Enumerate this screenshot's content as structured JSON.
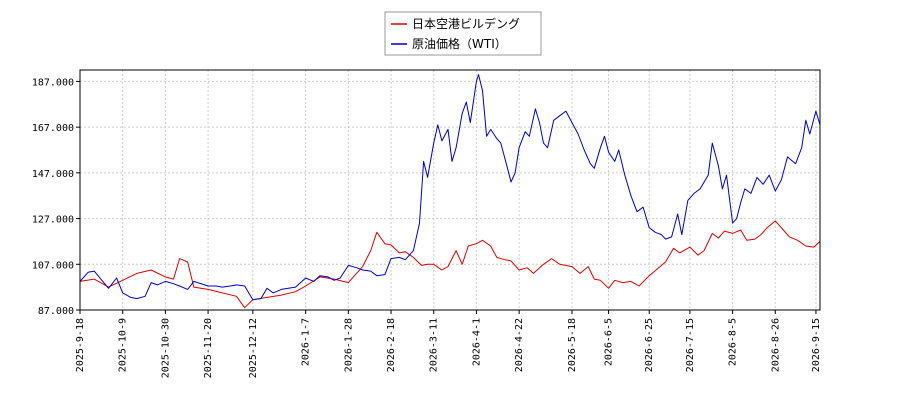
{
  "chart_data": {
    "type": "line",
    "title": "",
    "xlabel": "",
    "ylabel": "",
    "ylim": [
      87,
      192
    ],
    "yticks": [
      87,
      107,
      127,
      147,
      167,
      187
    ],
    "ytick_labels": [
      "87.000",
      "107.000",
      "127.000",
      "147.000",
      "167.000",
      "187.000"
    ],
    "xlim": [
      "2025-09-18",
      "2026-09-17"
    ],
    "xticks": [
      "2025-9-18",
      "2025-10-9",
      "2025-10-30",
      "2025-11-20",
      "2025-12-12",
      "2026-1-7",
      "2026-1-28",
      "2026-2-18",
      "2026-3-11",
      "2026-4-1",
      "2026-4-22",
      "2026-5-18",
      "2026-6-5",
      "2026-6-25",
      "2026-7-15",
      "2026-8-5",
      "2026-8-26",
      "2026-9-15"
    ],
    "grid": true,
    "legend": "top-center",
    "series": [
      {
        "name": "日本空港ビルデング",
        "color": "#dd0000",
        "points": [
          [
            "2025-09-18",
            99.5
          ],
          [
            "2025-09-25",
            100.5
          ],
          [
            "2025-10-02",
            97
          ],
          [
            "2025-10-09",
            100
          ],
          [
            "2025-10-16",
            103
          ],
          [
            "2025-10-23",
            104.5
          ],
          [
            "2025-10-30",
            101.5
          ],
          [
            "2025-11-03",
            100.5
          ],
          [
            "2025-11-06",
            109.5
          ],
          [
            "2025-11-10",
            108
          ],
          [
            "2025-11-13",
            97
          ],
          [
            "2025-11-20",
            96
          ],
          [
            "2025-11-27",
            94.5
          ],
          [
            "2025-12-04",
            93
          ],
          [
            "2025-12-08",
            88
          ],
          [
            "2025-12-12",
            91.5
          ],
          [
            "2025-12-19",
            92.5
          ],
          [
            "2025-12-26",
            93.5
          ],
          [
            "2026-01-02",
            95
          ],
          [
            "2026-01-07",
            97.5
          ],
          [
            "2026-01-14",
            101.5
          ],
          [
            "2026-01-21",
            100.5
          ],
          [
            "2026-01-28",
            99
          ],
          [
            "2026-02-04",
            106
          ],
          [
            "2026-02-08",
            113
          ],
          [
            "2026-02-11",
            121
          ],
          [
            "2026-02-15",
            116
          ],
          [
            "2026-02-18",
            115.5
          ],
          [
            "2026-02-22",
            112
          ],
          [
            "2026-02-25",
            112.5
          ],
          [
            "2026-03-01",
            110
          ],
          [
            "2026-03-05",
            106.5
          ],
          [
            "2026-03-08",
            107
          ],
          [
            "2026-03-11",
            107
          ],
          [
            "2026-03-15",
            104.5
          ],
          [
            "2026-03-18",
            106
          ],
          [
            "2026-03-22",
            113
          ],
          [
            "2026-03-25",
            107
          ],
          [
            "2026-03-28",
            115
          ],
          [
            "2026-04-01",
            116
          ],
          [
            "2026-04-04",
            117.5
          ],
          [
            "2026-04-08",
            115
          ],
          [
            "2026-04-11",
            110
          ],
          [
            "2026-04-15",
            109
          ],
          [
            "2026-04-18",
            108.5
          ],
          [
            "2026-04-22",
            104.5
          ],
          [
            "2026-04-26",
            105.5
          ],
          [
            "2026-04-29",
            103
          ],
          [
            "2026-05-04",
            107
          ],
          [
            "2026-05-08",
            109.5
          ],
          [
            "2026-05-12",
            107
          ],
          [
            "2026-05-18",
            106
          ],
          [
            "2026-05-22",
            103
          ],
          [
            "2026-05-26",
            106
          ],
          [
            "2026-05-29",
            100.5
          ],
          [
            "2026-06-01",
            100
          ],
          [
            "2026-06-05",
            96.5
          ],
          [
            "2026-06-08",
            100
          ],
          [
            "2026-06-12",
            99
          ],
          [
            "2026-06-16",
            99.5
          ],
          [
            "2026-06-20",
            97.5
          ],
          [
            "2026-06-25",
            102
          ],
          [
            "2026-06-29",
            105
          ],
          [
            "2026-07-03",
            108
          ],
          [
            "2026-07-07",
            114
          ],
          [
            "2026-07-10",
            112
          ],
          [
            "2026-07-15",
            114.5
          ],
          [
            "2026-07-19",
            111
          ],
          [
            "2026-07-22",
            113
          ],
          [
            "2026-07-26",
            120.5
          ],
          [
            "2026-07-29",
            118.5
          ],
          [
            "2026-08-01",
            121.5
          ],
          [
            "2026-08-05",
            120.5
          ],
          [
            "2026-08-09",
            122
          ],
          [
            "2026-08-12",
            117.5
          ],
          [
            "2026-08-16",
            118
          ],
          [
            "2026-08-19",
            120
          ],
          [
            "2026-08-22",
            123
          ],
          [
            "2026-08-26",
            126
          ],
          [
            "2026-08-30",
            122
          ],
          [
            "2026-09-02",
            119
          ],
          [
            "2026-09-06",
            117.5
          ],
          [
            "2026-09-10",
            115
          ],
          [
            "2026-09-14",
            114.5
          ],
          [
            "2026-09-17",
            117
          ]
        ]
      },
      {
        "name": "原油価格（WTI）",
        "color": "#0000cc",
        "points": [
          [
            "2025-09-18",
            99.5
          ],
          [
            "2025-09-22",
            103.5
          ],
          [
            "2025-09-25",
            104
          ],
          [
            "2025-10-02",
            96.5
          ],
          [
            "2025-10-06",
            101
          ],
          [
            "2025-10-09",
            94.5
          ],
          [
            "2025-10-13",
            92.5
          ],
          [
            "2025-10-16",
            92
          ],
          [
            "2025-10-20",
            93
          ],
          [
            "2025-10-23",
            99
          ],
          [
            "2025-10-26",
            98
          ],
          [
            "2025-10-30",
            99.5
          ],
          [
            "2025-11-03",
            98.5
          ],
          [
            "2025-11-06",
            97.5
          ],
          [
            "2025-11-10",
            96
          ],
          [
            "2025-11-13",
            99.5
          ],
          [
            "2025-11-20",
            97.5
          ],
          [
            "2025-11-24",
            97.5
          ],
          [
            "2025-11-27",
            97
          ],
          [
            "2025-12-01",
            97.5
          ],
          [
            "2025-12-04",
            98
          ],
          [
            "2025-12-08",
            97.5
          ],
          [
            "2025-12-12",
            91.5
          ],
          [
            "2025-12-16",
            92
          ],
          [
            "2025-12-19",
            96.5
          ],
          [
            "2025-12-22",
            94.5
          ],
          [
            "2025-12-26",
            96
          ],
          [
            "2026-01-02",
            97
          ],
          [
            "2026-01-07",
            101
          ],
          [
            "2026-01-11",
            99.5
          ],
          [
            "2026-01-14",
            102
          ],
          [
            "2026-01-18",
            101.5
          ],
          [
            "2026-01-21",
            100
          ],
          [
            "2026-01-24",
            101
          ],
          [
            "2026-01-28",
            106.5
          ],
          [
            "2026-02-01",
            105.5
          ],
          [
            "2026-02-04",
            104.5
          ],
          [
            "2026-02-08",
            104
          ],
          [
            "2026-02-11",
            102
          ],
          [
            "2026-02-15",
            102.5
          ],
          [
            "2026-02-18",
            109.5
          ],
          [
            "2026-02-22",
            110
          ],
          [
            "2026-02-25",
            109
          ],
          [
            "2026-03-01",
            113
          ],
          [
            "2026-03-04",
            125
          ],
          [
            "2026-03-06",
            152
          ],
          [
            "2026-03-08",
            145
          ],
          [
            "2026-03-11",
            160
          ],
          [
            "2026-03-13",
            168
          ],
          [
            "2026-03-15",
            161
          ],
          [
            "2026-03-18",
            166
          ],
          [
            "2026-03-20",
            152
          ],
          [
            "2026-03-22",
            158
          ],
          [
            "2026-03-25",
            173
          ],
          [
            "2026-03-27",
            178
          ],
          [
            "2026-03-29",
            169
          ],
          [
            "2026-04-01",
            187
          ],
          [
            "2026-04-02",
            190
          ],
          [
            "2026-04-04",
            183
          ],
          [
            "2026-04-06",
            163
          ],
          [
            "2026-04-08",
            166
          ],
          [
            "2026-04-11",
            162
          ],
          [
            "2026-04-13",
            160
          ],
          [
            "2026-04-16",
            150
          ],
          [
            "2026-04-18",
            143
          ],
          [
            "2026-04-20",
            147
          ],
          [
            "2026-04-22",
            158
          ],
          [
            "2026-04-25",
            165
          ],
          [
            "2026-04-27",
            163
          ],
          [
            "2026-04-30",
            175
          ],
          [
            "2026-05-02",
            169
          ],
          [
            "2026-05-04",
            160
          ],
          [
            "2026-05-06",
            158
          ],
          [
            "2026-05-09",
            170
          ],
          [
            "2026-05-12",
            172
          ],
          [
            "2026-05-15",
            174
          ],
          [
            "2026-05-18",
            169
          ],
          [
            "2026-05-21",
            164
          ],
          [
            "2026-05-24",
            157
          ],
          [
            "2026-05-27",
            151
          ],
          [
            "2026-05-29",
            149
          ],
          [
            "2026-06-01",
            158
          ],
          [
            "2026-06-03",
            163
          ],
          [
            "2026-06-05",
            156
          ],
          [
            "2026-06-08",
            152
          ],
          [
            "2026-06-10",
            157
          ],
          [
            "2026-06-13",
            146
          ],
          [
            "2026-06-16",
            137
          ],
          [
            "2026-06-19",
            130
          ],
          [
            "2026-06-22",
            132
          ],
          [
            "2026-06-25",
            123
          ],
          [
            "2026-06-28",
            121
          ],
          [
            "2026-07-01",
            120
          ],
          [
            "2026-07-03",
            118
          ],
          [
            "2026-07-06",
            119
          ],
          [
            "2026-07-09",
            129
          ],
          [
            "2026-07-11",
            120
          ],
          [
            "2026-07-14",
            135
          ],
          [
            "2026-07-17",
            138
          ],
          [
            "2026-07-20",
            140
          ],
          [
            "2026-07-24",
            146
          ],
          [
            "2026-07-26",
            160
          ],
          [
            "2026-07-29",
            150
          ],
          [
            "2026-07-31",
            140
          ],
          [
            "2026-08-02",
            146
          ],
          [
            "2026-08-05",
            125
          ],
          [
            "2026-08-07",
            127
          ],
          [
            "2026-08-09",
            134
          ],
          [
            "2026-08-11",
            140
          ],
          [
            "2026-08-14",
            138
          ],
          [
            "2026-08-17",
            145
          ],
          [
            "2026-08-20",
            142
          ],
          [
            "2026-08-23",
            146
          ],
          [
            "2026-08-26",
            139
          ],
          [
            "2026-08-29",
            144
          ],
          [
            "2026-09-01",
            154
          ],
          [
            "2026-09-05",
            151
          ],
          [
            "2026-09-08",
            158
          ],
          [
            "2026-09-10",
            170
          ],
          [
            "2026-09-12",
            164
          ],
          [
            "2026-09-15",
            174
          ],
          [
            "2026-09-17",
            168
          ]
        ]
      }
    ]
  }
}
